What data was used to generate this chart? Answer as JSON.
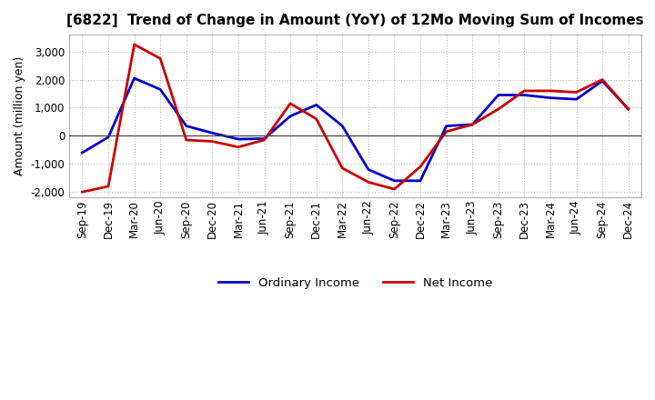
{
  "title": "[6822]  Trend of Change in Amount (YoY) of 12Mo Moving Sum of Incomes",
  "ylabel": "Amount (million yen)",
  "x_labels": [
    "Sep-19",
    "Dec-19",
    "Mar-20",
    "Jun-20",
    "Sep-20",
    "Dec-20",
    "Mar-21",
    "Jun-21",
    "Sep-21",
    "Dec-21",
    "Mar-22",
    "Jun-22",
    "Sep-22",
    "Dec-22",
    "Mar-23",
    "Jun-23",
    "Sep-23",
    "Dec-23",
    "Mar-24",
    "Jun-24",
    "Sep-24",
    "Dec-24"
  ],
  "ordinary_income": [
    -600,
    -50,
    2050,
    1650,
    350,
    100,
    -120,
    -100,
    700,
    1100,
    350,
    -1200,
    -1600,
    -1600,
    350,
    400,
    1450,
    1450,
    1350,
    1300,
    1950,
    950
  ],
  "net_income": [
    -2000,
    -1800,
    3250,
    2750,
    -150,
    -200,
    -400,
    -150,
    1150,
    600,
    -1150,
    -1650,
    -1900,
    -1100,
    150,
    400,
    950,
    1600,
    1600,
    1550,
    2000,
    950
  ],
  "ordinary_color": "#0000cc",
  "net_color": "#cc0000",
  "ylim": [
    -2200,
    3600
  ],
  "yticks": [
    -2000,
    -1000,
    0,
    1000,
    2000,
    3000
  ],
  "bg_color": "#ffffff",
  "plot_bg_color": "#ffffff",
  "grid_color": "#aaaaaa",
  "line_width": 2.0,
  "legend_ordinary": "Ordinary Income",
  "legend_net": "Net Income",
  "title_fontsize": 11,
  "axis_label_fontsize": 9,
  "tick_fontsize": 8.5
}
